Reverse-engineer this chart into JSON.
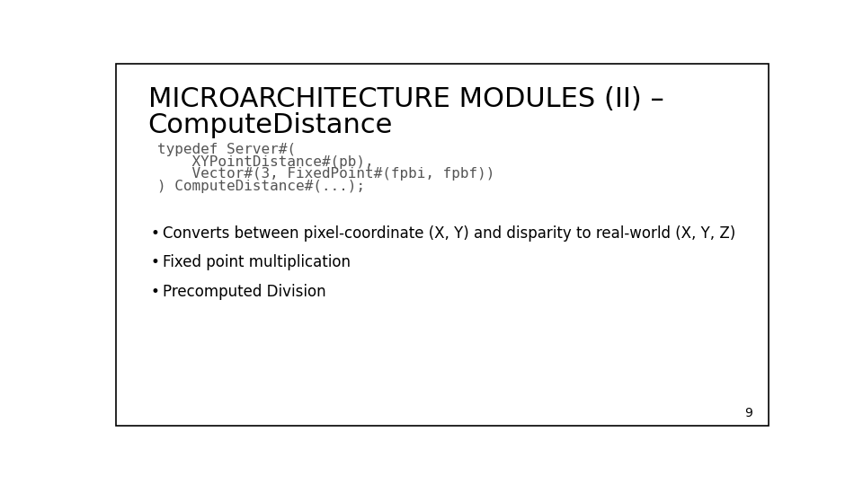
{
  "bg_color": "#ffffff",
  "border_color": "#000000",
  "title_line1": "MICROARCHITECTURE MODULES (II) –",
  "title_line2": "ComputeDistance",
  "title_color": "#000000",
  "title_fontsize": 22,
  "code_lines": [
    "typedef Server#(",
    "    XYPointDistance#(pb),",
    "    Vector#(3, FixedPoint#(fpbi, fpbf))",
    ") ComputeDistance#(...);"
  ],
  "code_color": "#555555",
  "code_fontsize": 11.5,
  "bullet_points": [
    "Converts between pixel-coordinate (X, Y) and disparity to real-world (X, Y, Z)",
    "Fixed point multiplication",
    "Precomputed Division"
  ],
  "bullet_color": "#000000",
  "bullet_fontsize": 12,
  "page_number": "9",
  "page_number_color": "#000000",
  "page_number_fontsize": 10
}
